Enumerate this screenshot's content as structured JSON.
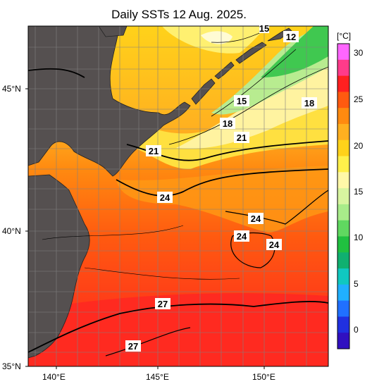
{
  "title": "Daily SSTs 12 Aug. 2025.",
  "lat_labels": [
    "45°N",
    "40°N",
    "35°N"
  ],
  "lon_labels": [
    "140°E",
    "145°E",
    "150°E"
  ],
  "colorbar": {
    "unit": "[°C]",
    "ticks": [
      "30",
      "25",
      "20",
      "15",
      "10",
      "5",
      "0"
    ],
    "colors": [
      "#ff66ff",
      "#ff3b8a",
      "#ff2020",
      "#ff5a10",
      "#ff8a10",
      "#ffb020",
      "#ffd21a",
      "#fff04a",
      "#fff8a8",
      "#d8f5a0",
      "#a8ec8a",
      "#60d860",
      "#20c040",
      "#10b070",
      "#10c8c0",
      "#20b0ff",
      "#2070ff",
      "#2030e0",
      "#3010c0"
    ]
  },
  "contour_labels": [
    {
      "text": "12"
    },
    {
      "text": "15"
    },
    {
      "text": "15"
    },
    {
      "text": "18"
    },
    {
      "text": "18"
    },
    {
      "text": "21"
    },
    {
      "text": "21"
    },
    {
      "text": "24"
    },
    {
      "text": "24"
    },
    {
      "text": "24"
    },
    {
      "text": "24"
    },
    {
      "text": "27"
    },
    {
      "text": "27"
    }
  ]
}
